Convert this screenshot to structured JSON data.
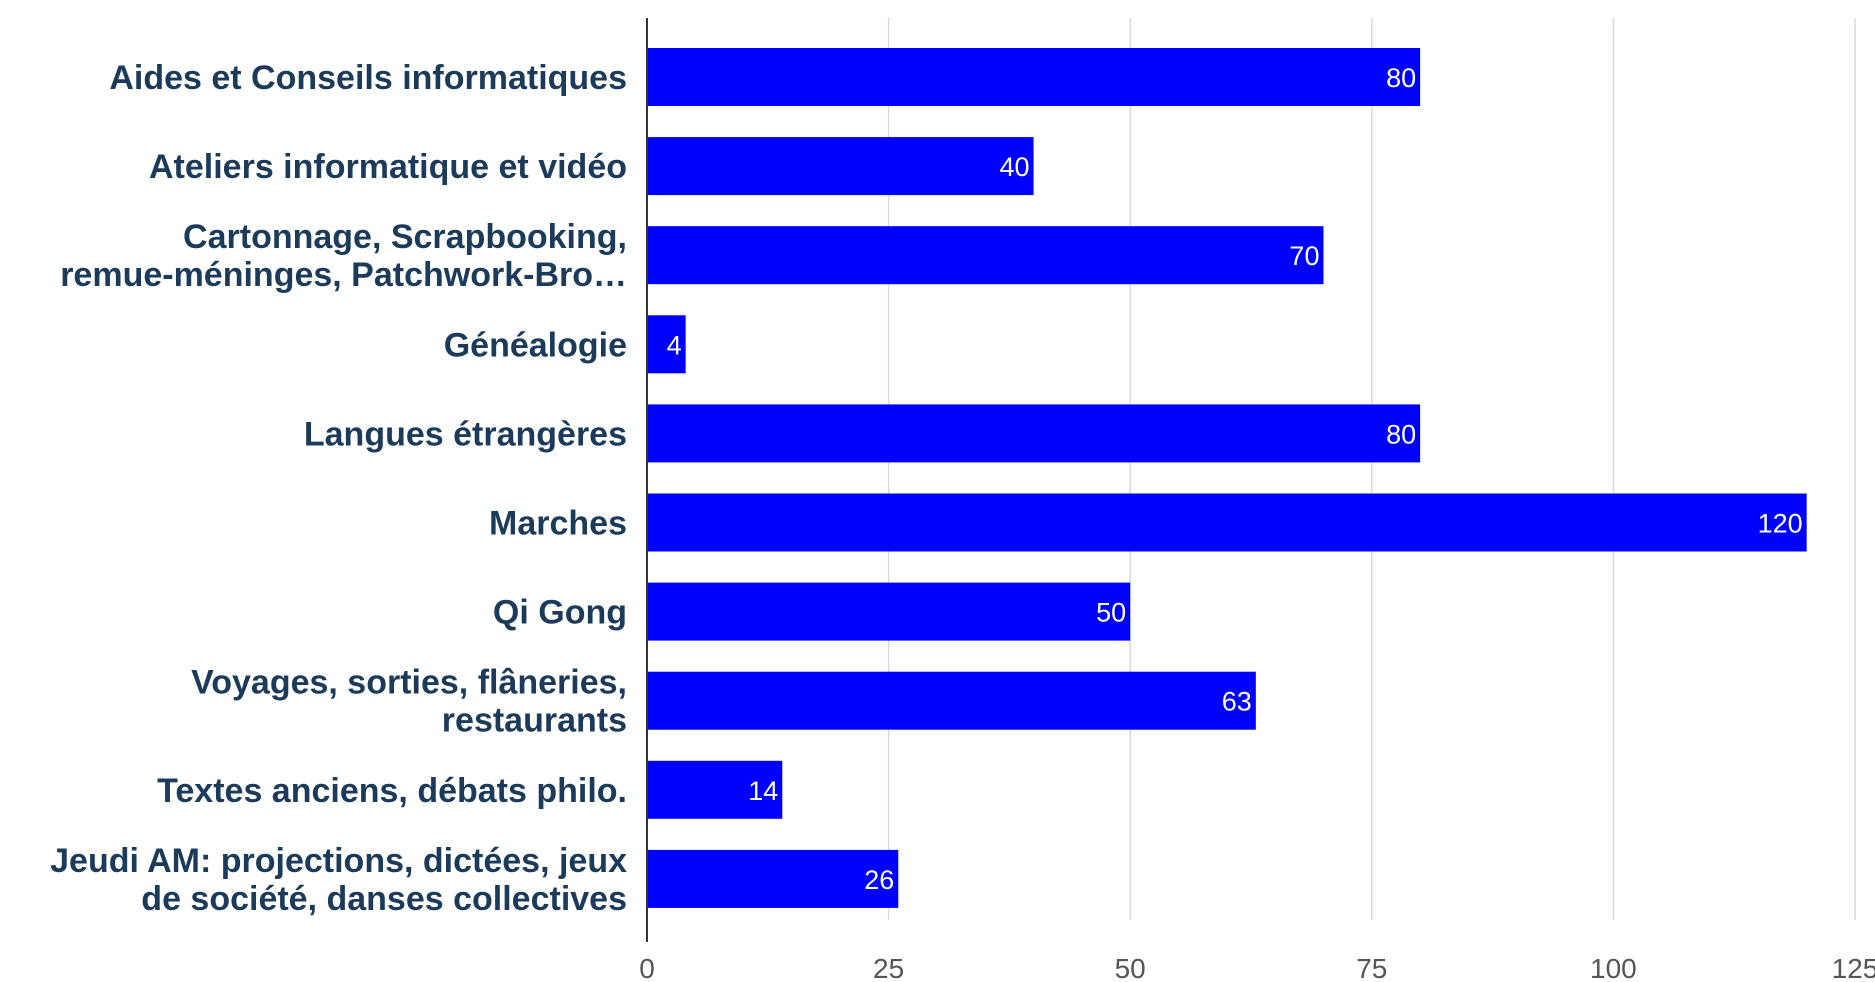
{
  "chart_data": {
    "type": "bar",
    "orientation": "horizontal",
    "categories": [
      "Aides et Conseils informatiques",
      "Ateliers informatique et vidéo",
      "Cartonnage, Scrapbooking, remue-méninges, Patchwork-Bro…",
      "Généalogie",
      "Langues étrangères",
      "Marches",
      "Qi Gong",
      "Voyages, sorties, flâneries, restaurants",
      "Textes anciens, débats philo.",
      "Jeudi AM: projections, dictées, jeux de société, danses collectives"
    ],
    "category_label_lines": [
      [
        "Aides et Conseils informatiques"
      ],
      [
        "Ateliers informatique et vidéo"
      ],
      [
        "Cartonnage, Scrapbooking,",
        "remue-méninges, Patchwork-Bro…"
      ],
      [
        "Généalogie"
      ],
      [
        "Langues étrangères"
      ],
      [
        "Marches"
      ],
      [
        "Qi Gong"
      ],
      [
        "Voyages, sorties, flâneries,",
        "restaurants"
      ],
      [
        "Textes anciens, débats philo."
      ],
      [
        "Jeudi AM: projections, dictées, jeux",
        "de société, danses collectives"
      ]
    ],
    "values": [
      80,
      40,
      70,
      4,
      80,
      120,
      50,
      63,
      14,
      26
    ],
    "data_labels": [
      "80",
      "40",
      "70",
      "4",
      "80",
      "120",
      "50",
      "63",
      "14",
      "26"
    ],
    "xlim": [
      0,
      125
    ],
    "xticks": [
      0,
      25,
      50,
      75,
      100,
      125
    ],
    "xtick_labels": [
      "0",
      "25",
      "50",
      "75",
      "100",
      "125"
    ],
    "title": "",
    "xlabel": "",
    "ylabel": "",
    "grid": true,
    "legend": "none",
    "colors": {
      "bar": "#0000ff",
      "category_label": "#1c3b5a",
      "tick_label": "#555555",
      "grid": "#d9d9d9",
      "axis": "#333333",
      "data_label": "#ffffff"
    }
  }
}
